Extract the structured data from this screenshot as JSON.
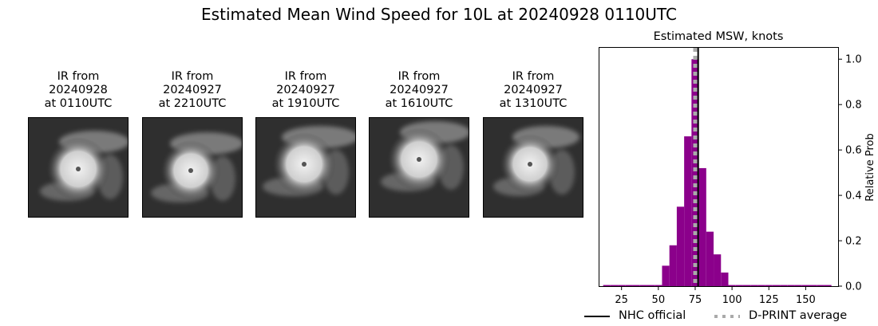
{
  "suptitle": "Estimated Mean Wind Speed for 10L at 20240928 0110UTC",
  "ir_images": [
    {
      "caption": "IR from\n20240928\nat 0110UTC"
    },
    {
      "caption": "IR from\n20240927\nat 2210UTC"
    },
    {
      "caption": "IR from\n20240927\nat 1910UTC"
    },
    {
      "caption": "IR from\n20240927\nat 1610UTC"
    },
    {
      "caption": "IR from\n20240927\nat 1310UTC"
    }
  ],
  "chart_data": {
    "type": "bar",
    "title": "Estimated MSW, knots",
    "xlabel": "",
    "ylabel": "Relative Prob",
    "xlim": [
      10,
      172
    ],
    "ylim": [
      0,
      1.05
    ],
    "xticks": [
      25,
      50,
      75,
      100,
      125,
      150
    ],
    "yticks": [
      0.0,
      0.2,
      0.4,
      0.6,
      0.8,
      1.0
    ],
    "bar_color": "#8b008b",
    "bin_width": 5,
    "bins": [
      {
        "x": 15,
        "value": 0.005
      },
      {
        "x": 20,
        "value": 0.005
      },
      {
        "x": 25,
        "value": 0.005
      },
      {
        "x": 30,
        "value": 0.005
      },
      {
        "x": 35,
        "value": 0.005
      },
      {
        "x": 40,
        "value": 0.005
      },
      {
        "x": 45,
        "value": 0.005
      },
      {
        "x": 50,
        "value": 0.005
      },
      {
        "x": 55,
        "value": 0.09
      },
      {
        "x": 60,
        "value": 0.18
      },
      {
        "x": 65,
        "value": 0.35
      },
      {
        "x": 70,
        "value": 0.66
      },
      {
        "x": 75,
        "value": 1.0
      },
      {
        "x": 80,
        "value": 0.52
      },
      {
        "x": 85,
        "value": 0.24
      },
      {
        "x": 90,
        "value": 0.14
      },
      {
        "x": 95,
        "value": 0.06
      },
      {
        "x": 100,
        "value": 0.005
      },
      {
        "x": 105,
        "value": 0.005
      },
      {
        "x": 110,
        "value": 0.005
      },
      {
        "x": 115,
        "value": 0.005
      },
      {
        "x": 120,
        "value": 0.005
      },
      {
        "x": 125,
        "value": 0.005
      },
      {
        "x": 130,
        "value": 0.005
      },
      {
        "x": 135,
        "value": 0.005
      },
      {
        "x": 140,
        "value": 0.005
      },
      {
        "x": 145,
        "value": 0.005
      },
      {
        "x": 150,
        "value": 0.005
      },
      {
        "x": 155,
        "value": 0.005
      },
      {
        "x": 160,
        "value": 0.005
      },
      {
        "x": 165,
        "value": 0.005
      }
    ],
    "nhc_official": 77,
    "dprint_average": 75,
    "nhc_color": "#000000",
    "dprint_color": "#aaaaaa",
    "legend": {
      "placement": "bottom",
      "entries": [
        {
          "label": "NHC official",
          "style": "solid"
        },
        {
          "label": "D-PRINT average",
          "style": "dotted"
        }
      ]
    }
  }
}
